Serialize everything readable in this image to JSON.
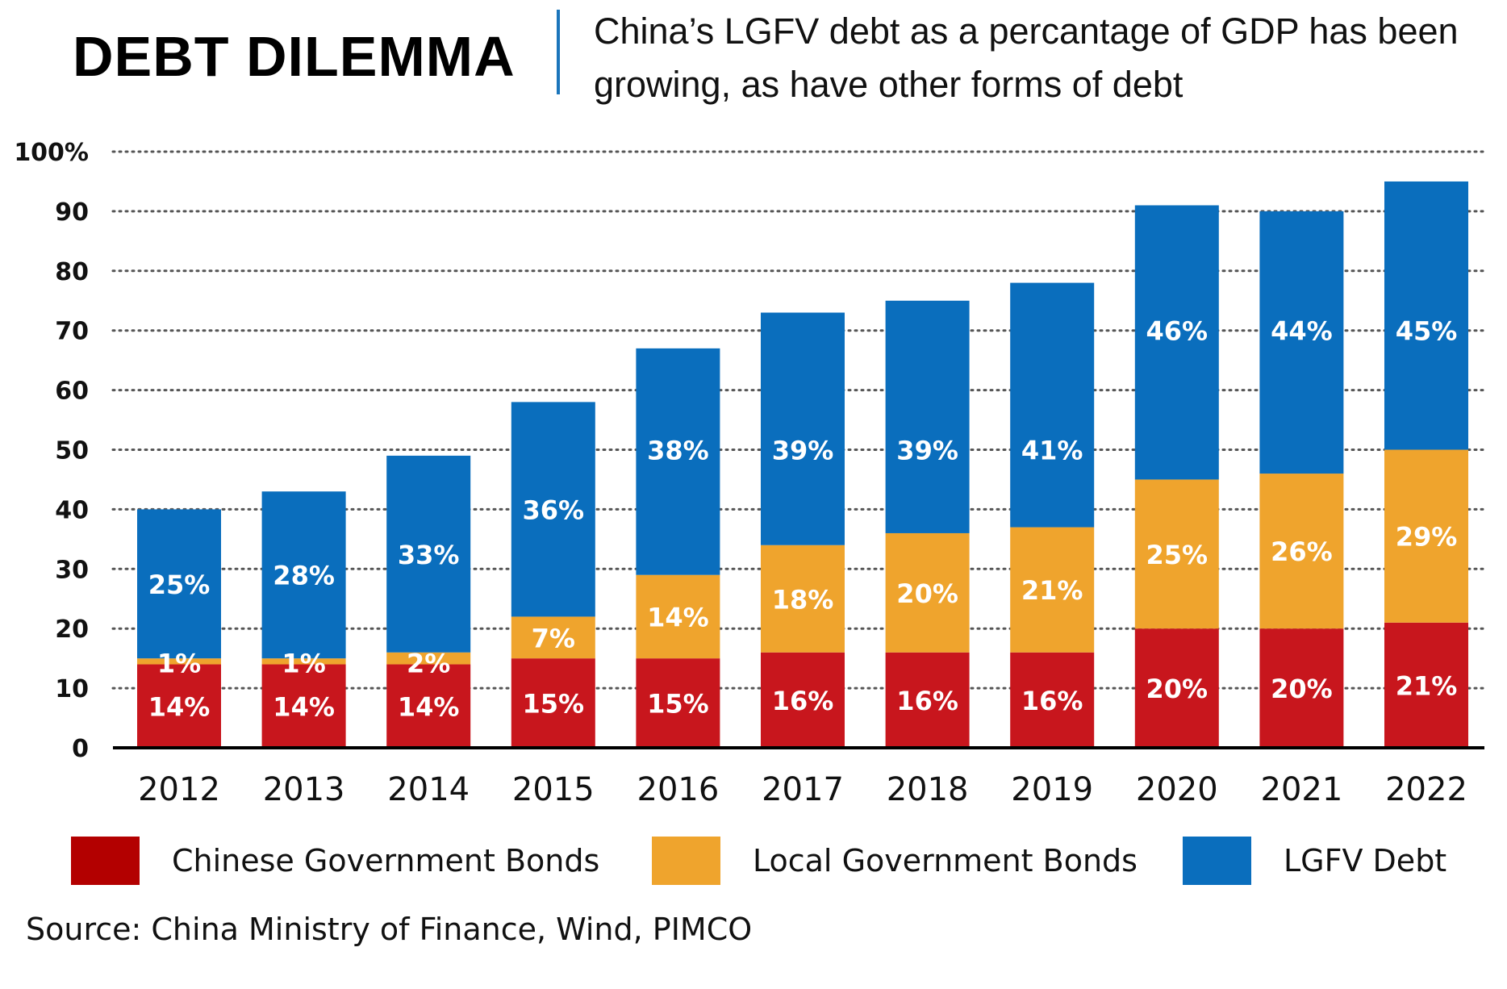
{
  "header": {
    "title": "DEBT DILEMMA",
    "subtitle": "China’s LGFV debt as a percantage of GDP has been growing, as have other forms of debt"
  },
  "source": "Source: China Ministry of Finance, Wind, PIMCO",
  "colors": {
    "cgb": "#c8161d",
    "lgb": "#efa42d",
    "lgfv": "#0a6ebd",
    "legend_cgb": "#b30000",
    "grid": "#555555"
  },
  "chart_data": {
    "type": "bar",
    "stacked": true,
    "categories": [
      "2012",
      "2013",
      "2014",
      "2015",
      "2016",
      "2017",
      "2018",
      "2019",
      "2020",
      "2021",
      "2022"
    ],
    "yticks": [
      "0",
      "10",
      "20",
      "30",
      "40",
      "50",
      "60",
      "70",
      "80",
      "90",
      "100%"
    ],
    "ylim": [
      0,
      100
    ],
    "grid": true,
    "legend_position": "bottom",
    "series": [
      {
        "name": "Chinese Government Bonds",
        "color_key": "cgb",
        "values": [
          14,
          14,
          14,
          15,
          15,
          16,
          16,
          16,
          20,
          20,
          21
        ],
        "labels": [
          "14%",
          "14%",
          "14%",
          "15%",
          "15%",
          "16%",
          "16%",
          "16%",
          "20%",
          "20%",
          "21%"
        ]
      },
      {
        "name": "Local Government Bonds",
        "color_key": "lgb",
        "values": [
          1,
          1,
          2,
          7,
          14,
          18,
          20,
          21,
          25,
          26,
          29
        ],
        "labels": [
          "1%",
          "1%",
          "2%",
          "7%",
          "14%",
          "18%",
          "20%",
          "21%",
          "25%",
          "26%",
          "29%"
        ]
      },
      {
        "name": "LGFV Debt",
        "color_key": "lgfv",
        "values": [
          25,
          28,
          33,
          36,
          38,
          39,
          39,
          41,
          46,
          44,
          45
        ],
        "labels": [
          "25%",
          "28%",
          "33%",
          "36%",
          "38%",
          "39%",
          "39%",
          "41%",
          "46%",
          "44%",
          "45%"
        ]
      }
    ]
  }
}
